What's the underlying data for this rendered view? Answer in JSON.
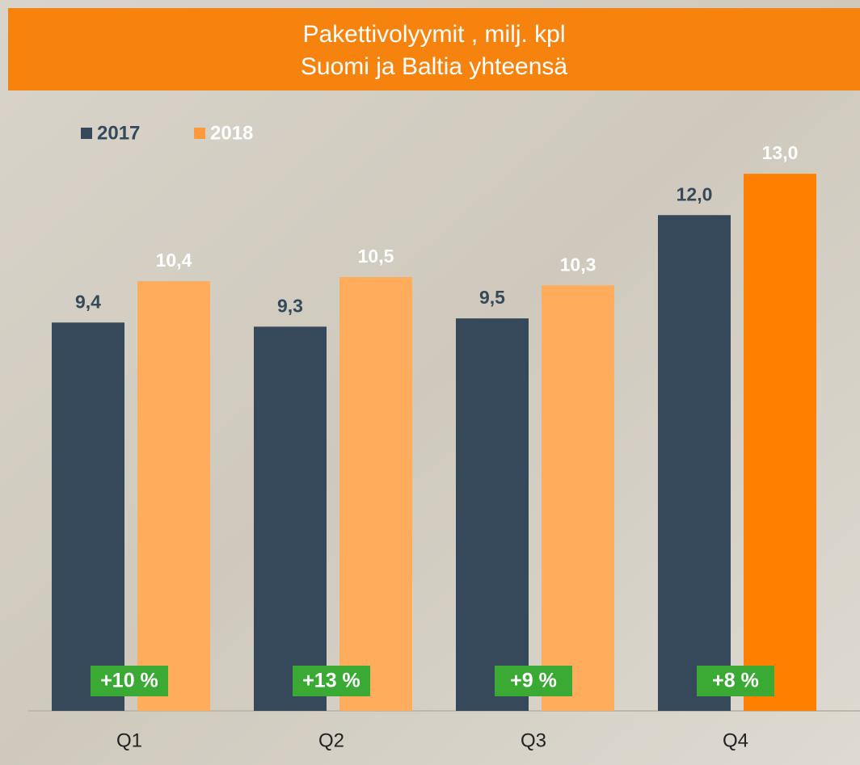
{
  "chart_data": {
    "type": "bar",
    "title": "Pakettivolyymit , milj. kpl",
    "subtitle": "Suomi ja Baltia yhteensä",
    "categories": [
      "Q1",
      "Q2",
      "Q3",
      "Q4"
    ],
    "series": [
      {
        "name": "2017",
        "color": "#36495a",
        "values": [
          9.4,
          9.3,
          9.5,
          12.0
        ],
        "value_labels": [
          "9,4",
          "9,3",
          "9,5",
          "12,0"
        ]
      },
      {
        "name": "2018",
        "color": "#ff9a3c",
        "bar_colors": [
          "#ffad5c",
          "#ffad5c",
          "#ffad5c",
          "#ff8000"
        ],
        "values": [
          10.4,
          10.5,
          10.3,
          13.0
        ],
        "value_labels": [
          "10,4",
          "10,5",
          "10,3",
          "13,0"
        ]
      }
    ],
    "annotations": [
      "+10 %",
      "+13 %",
      "+9 %",
      "+8 %"
    ],
    "ylim": [
      0,
      14
    ],
    "grid": false,
    "legend": "top-left"
  }
}
